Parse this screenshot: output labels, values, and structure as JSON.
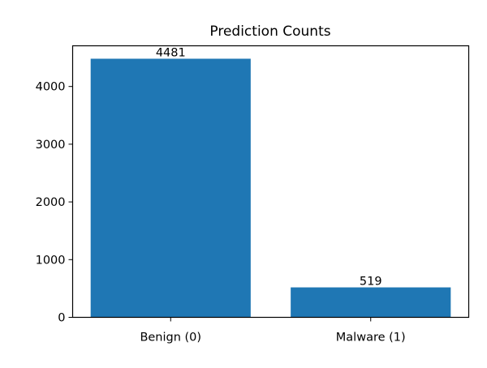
{
  "chart_data": {
    "type": "bar",
    "title": "Prediction Counts",
    "categories": [
      "Benign (0)",
      "Malware (1)"
    ],
    "values": [
      4481,
      519
    ],
    "data_labels": [
      "4481",
      "519"
    ],
    "xlabel": "",
    "ylabel": "",
    "ylim": [
      0,
      4705
    ],
    "yticks": [
      0,
      1000,
      2000,
      3000,
      4000
    ],
    "ytick_labels": [
      "0",
      "1000",
      "2000",
      "3000",
      "4000"
    ],
    "grid": false,
    "legend": "none",
    "bar_color": "#1f77b4"
  }
}
